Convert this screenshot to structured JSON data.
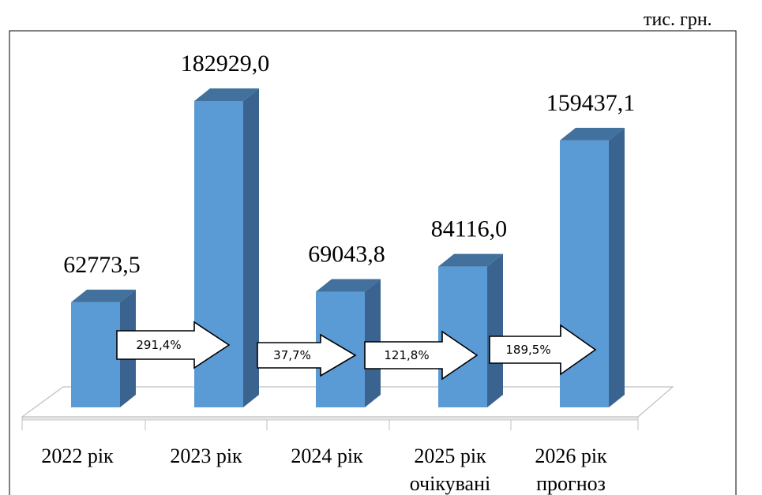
{
  "unit_label": "тис. грн.",
  "chart_data": {
    "type": "bar",
    "categories": [
      [
        "2022 рік"
      ],
      [
        "2023 рік"
      ],
      [
        "2024 рік"
      ],
      [
        "2025 рік",
        "очікувані"
      ],
      [
        "2026 рік",
        "прогноз"
      ]
    ],
    "values": [
      62773.5,
      182929.0,
      69043.8,
      84116.0,
      159437.1
    ],
    "value_labels": [
      "62773,5",
      "182929,0",
      "69043,8",
      "84116,0",
      "159437,1"
    ],
    "growth_labels": [
      "291,4%",
      "37,7%",
      "121,8%",
      "189,5%"
    ],
    "ylim": [
      0,
      200000
    ],
    "grid": false,
    "legend": "none",
    "colors": {
      "bar_front": "#5b9bd5",
      "bar_side": "#3a648f",
      "bar_top": "#41719c",
      "floor": "#bfbfbf",
      "frame": "#000000"
    }
  }
}
